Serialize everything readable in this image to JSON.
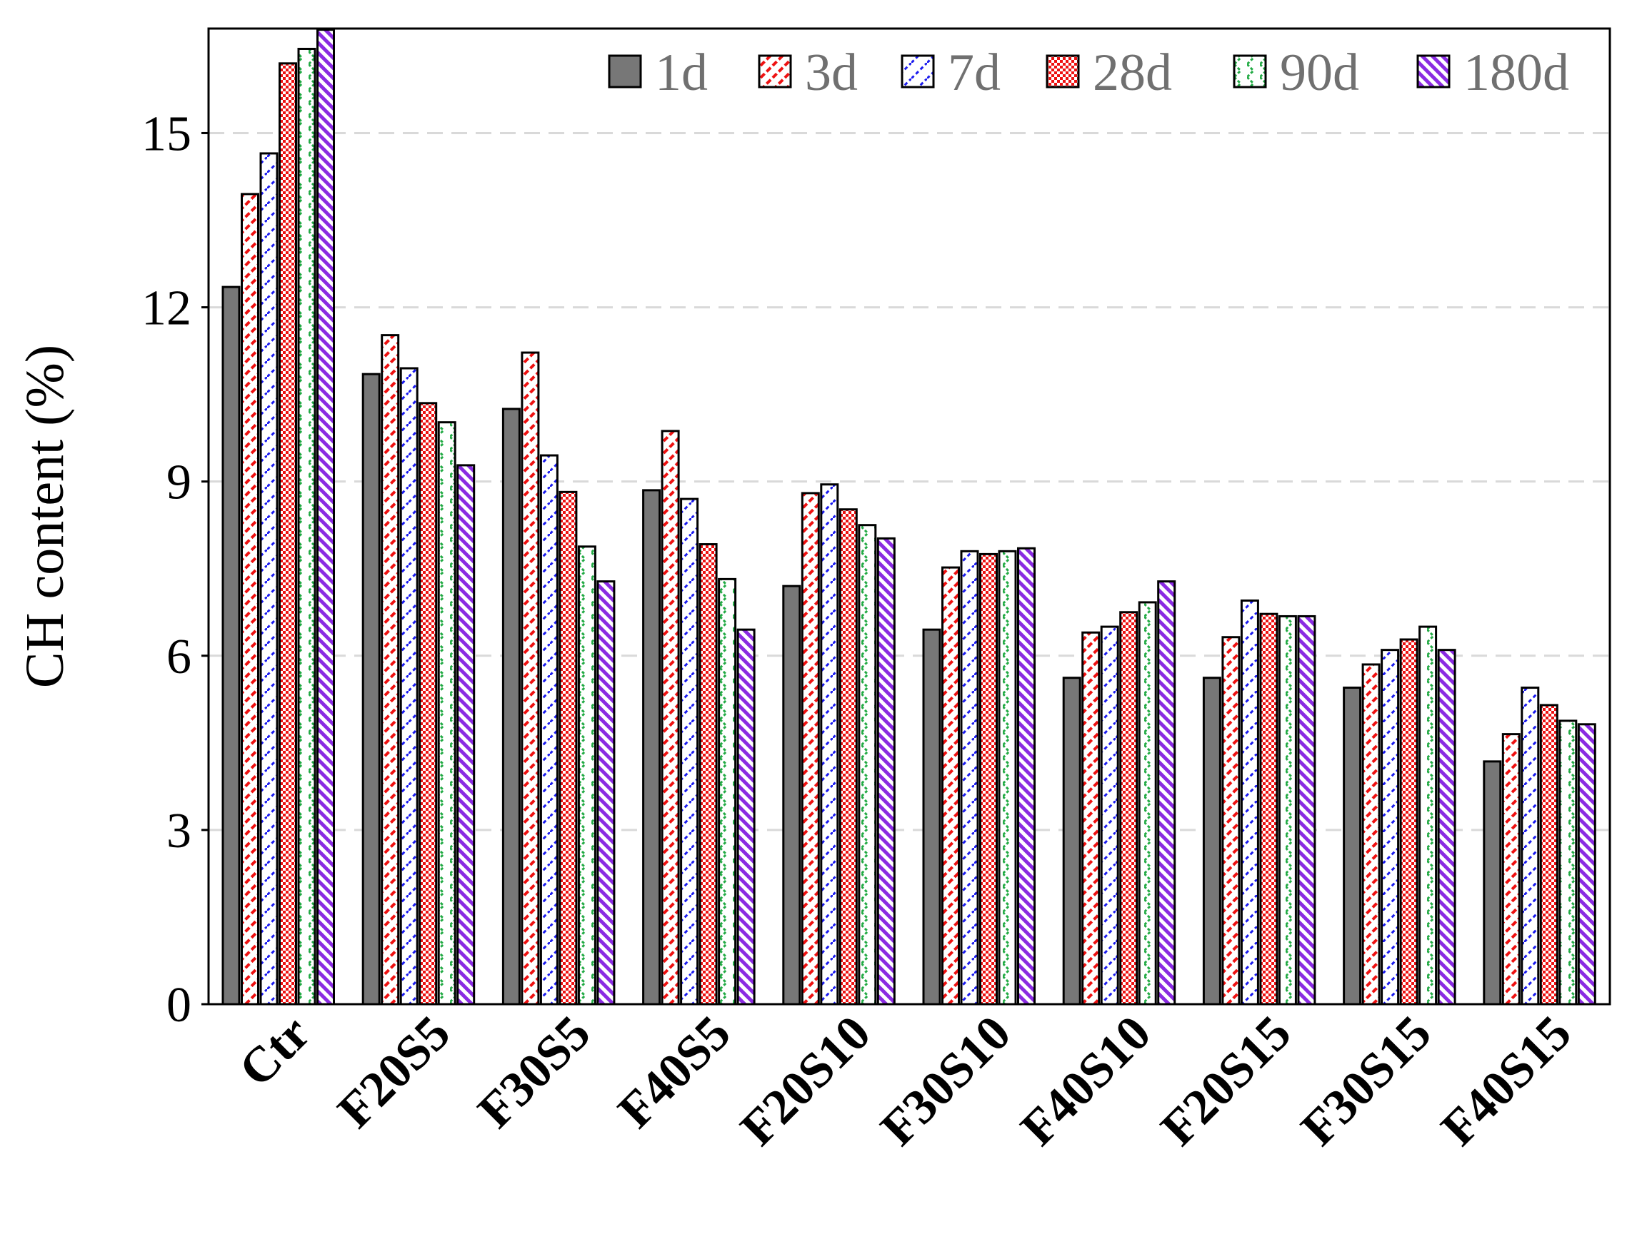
{
  "chart_data": {
    "type": "bar",
    "title": "",
    "xlabel": "",
    "ylabel": "CH content (%)",
    "ylim": [
      0,
      16.8
    ],
    "yticks": [
      0,
      3,
      6,
      9,
      12,
      15
    ],
    "grid": "horizontal dashed",
    "legend_position": "top-right",
    "categories": [
      "Ctr",
      "F20S5",
      "F30S5",
      "F40S5",
      "F20S10",
      "F30S10",
      "F40S10",
      "F20S15",
      "F30S15",
      "F40S15"
    ],
    "series": [
      {
        "name": "1d",
        "color": "#777777",
        "pattern": "solid",
        "values": [
          12.35,
          10.85,
          10.25,
          8.85,
          7.2,
          6.45,
          5.62,
          5.62,
          5.45,
          4.18
        ]
      },
      {
        "name": "3d",
        "color": "#ee1111",
        "pattern": "diagonal-dash",
        "values": [
          13.95,
          11.52,
          11.22,
          9.87,
          8.8,
          7.52,
          6.4,
          6.32,
          5.85,
          4.65
        ]
      },
      {
        "name": "7d",
        "color": "#1a1aee",
        "pattern": "diagonal-sparse",
        "values": [
          14.65,
          10.95,
          9.45,
          8.7,
          8.95,
          7.8,
          6.5,
          6.95,
          6.1,
          5.45
        ]
      },
      {
        "name": "28d",
        "color": "#ee1111",
        "pattern": "checker",
        "values": [
          16.2,
          10.35,
          8.82,
          7.92,
          8.52,
          7.75,
          6.75,
          6.72,
          6.28,
          5.15
        ]
      },
      {
        "name": "90d",
        "color": "#22aa44",
        "pattern": "zigzag",
        "values": [
          16.45,
          10.02,
          7.88,
          7.32,
          8.25,
          7.8,
          6.92,
          6.68,
          6.5,
          4.88
        ]
      },
      {
        "name": "180d",
        "color": "#8a2be2",
        "pattern": "diagonal-dense",
        "values": [
          16.78,
          9.28,
          7.28,
          6.45,
          8.02,
          7.85,
          7.28,
          6.68,
          6.1,
          4.82
        ]
      }
    ]
  }
}
